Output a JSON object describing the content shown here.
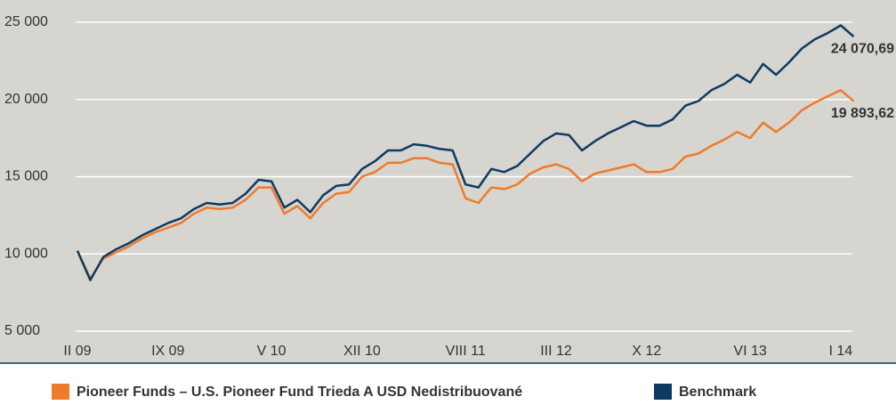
{
  "chart_data": {
    "type": "line",
    "categories": [
      "II 09",
      null,
      null,
      null,
      null,
      null,
      null,
      "IX 09",
      null,
      null,
      null,
      null,
      null,
      null,
      null,
      "V 10",
      null,
      null,
      null,
      null,
      null,
      null,
      "XII 10",
      null,
      null,
      null,
      null,
      null,
      null,
      null,
      "VIII 11",
      null,
      null,
      null,
      null,
      null,
      null,
      "III 12",
      null,
      null,
      null,
      null,
      null,
      null,
      "X 12",
      null,
      null,
      null,
      null,
      null,
      null,
      null,
      "VI 13",
      null,
      null,
      null,
      null,
      null,
      null,
      "I 14",
      null
    ],
    "series": [
      {
        "name": "Pioneer Funds – U.S. Pioneer Fund Trieda A USD Nedistribuované",
        "color": "#f07a2c",
        "values": [
          10200,
          8400,
          9700,
          10100,
          10500,
          11000,
          11400,
          11700,
          12000,
          12600,
          13000,
          12900,
          13000,
          13500,
          14300,
          14300,
          12600,
          13100,
          12300,
          13300,
          13900,
          14000,
          15000,
          15300,
          15900,
          15900,
          16200,
          16200,
          15900,
          15800,
          13600,
          13300,
          14300,
          14200,
          14500,
          15200,
          15600,
          15800,
          15500,
          14700,
          15200,
          15400,
          15600,
          15800,
          15300,
          15300,
          15500,
          16300,
          16500,
          17000,
          17400,
          17900,
          17500,
          18500,
          17900,
          18500,
          19300,
          19800,
          20200,
          20600,
          19893.62
        ],
        "value_labels": [
          null,
          null,
          null,
          null,
          null,
          null,
          null,
          null,
          null,
          null,
          null,
          null,
          null,
          null,
          null,
          null,
          null,
          null,
          null,
          null,
          null,
          null,
          null,
          null,
          null,
          null,
          null,
          null,
          null,
          null,
          null,
          null,
          null,
          null,
          null,
          null,
          null,
          null,
          null,
          null,
          null,
          null,
          null,
          null,
          null,
          null,
          null,
          null,
          null,
          null,
          null,
          null,
          null,
          null,
          null,
          null,
          null,
          null,
          null,
          null,
          "19 893,62"
        ]
      },
      {
        "name": "Benchmark",
        "color": "#0d3a63",
        "values": [
          10200,
          8300,
          9800,
          10300,
          10700,
          11200,
          11600,
          12000,
          12300,
          12900,
          13300,
          13200,
          13300,
          13900,
          14800,
          14700,
          13000,
          13500,
          12700,
          13800,
          14400,
          14500,
          15500,
          16000,
          16700,
          16700,
          17100,
          17000,
          16800,
          16700,
          14500,
          14300,
          15500,
          15300,
          15700,
          16500,
          17300,
          17800,
          17700,
          16700,
          17300,
          17800,
          18200,
          18600,
          18300,
          18300,
          18700,
          19600,
          19900,
          20600,
          21000,
          21600,
          21100,
          22300,
          21600,
          22400,
          23300,
          23900,
          24300,
          24800,
          24070.69
        ],
        "value_labels": [
          null,
          null,
          null,
          null,
          null,
          null,
          null,
          null,
          null,
          null,
          null,
          null,
          null,
          null,
          null,
          null,
          null,
          null,
          null,
          null,
          null,
          null,
          null,
          null,
          null,
          null,
          null,
          null,
          null,
          null,
          null,
          null,
          null,
          null,
          null,
          null,
          null,
          null,
          null,
          null,
          null,
          null,
          null,
          null,
          null,
          null,
          null,
          null,
          null,
          null,
          null,
          null,
          null,
          null,
          null,
          null,
          null,
          null,
          null,
          null,
          "24 070,69"
        ]
      }
    ],
    "ylim": [
      5000,
      25000
    ],
    "yticks": [
      {
        "value": 5000,
        "label": "5 000"
      },
      {
        "value": 10000,
        "label": "10 000"
      },
      {
        "value": 15000,
        "label": "15 000"
      },
      {
        "value": 20000,
        "label": "20 000"
      },
      {
        "value": 25000,
        "label": "25 000"
      }
    ],
    "grid": true
  }
}
